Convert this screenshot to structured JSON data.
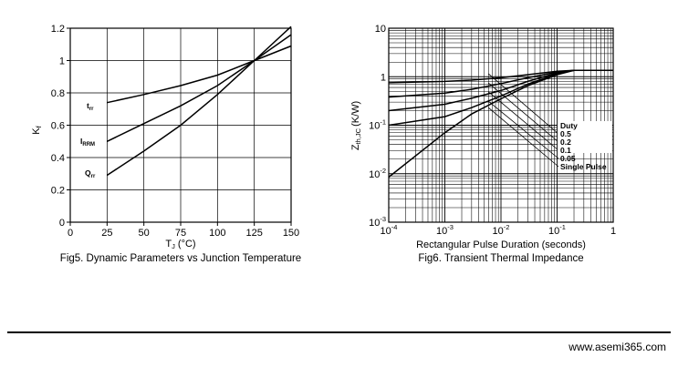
{
  "chart_data": [
    {
      "type": "line",
      "caption": "Fig5. Dynamic Parameters vs Junction Temperature",
      "ylabel": "K",
      "ylabel_sub": "f",
      "xlabel_main": "T",
      "xlabel_sub": "J",
      "xlabel_unit": "(°C)",
      "xlim": [
        0,
        150
      ],
      "ylim": [
        0,
        1.2
      ],
      "xticks": [
        "0",
        "25",
        "50",
        "75",
        "100",
        "125",
        "150"
      ],
      "yticks": [
        "0",
        "0.2",
        "0.4",
        "0.6",
        "0.8",
        "1",
        "1.2"
      ],
      "grid": true,
      "series": [
        {
          "name": "t",
          "sub": "rr",
          "x": [
            25,
            50,
            75,
            100,
            125,
            150
          ],
          "y": [
            0.74,
            0.79,
            0.845,
            0.91,
            1.0,
            1.09
          ]
        },
        {
          "name": "I",
          "sub": "RRM",
          "x": [
            25,
            50,
            75,
            100,
            125,
            150
          ],
          "y": [
            0.5,
            0.61,
            0.72,
            0.845,
            1.0,
            1.16
          ]
        },
        {
          "name": "Q",
          "sub": "rr",
          "x": [
            25,
            50,
            75,
            100,
            125,
            150
          ],
          "y": [
            0.29,
            0.44,
            0.6,
            0.79,
            1.0,
            1.21
          ]
        }
      ]
    },
    {
      "type": "line",
      "caption": "Fig6. Transient Thermal Impedance",
      "xlabel": "Rectangular Pulse Duration (seconds)",
      "ylabel_main": "Z",
      "ylabel_sub": "th,JC",
      "ylabel_unit": "(K/W)",
      "xscale": "log",
      "yscale": "log",
      "xlim": [
        0.0001,
        1
      ],
      "ylim": [
        0.001,
        10
      ],
      "xticks": [
        {
          "base": "10",
          "exp": "-4"
        },
        {
          "base": "10",
          "exp": "-3"
        },
        {
          "base": "10",
          "exp": "-2"
        },
        {
          "base": "10",
          "exp": "-1"
        },
        {
          "base": "1",
          "exp": ""
        }
      ],
      "yticks": [
        {
          "base": "10",
          "exp": "-3"
        },
        {
          "base": "10",
          "exp": "-2"
        },
        {
          "base": "10",
          "exp": "-1"
        },
        {
          "base": "1",
          "exp": ""
        },
        {
          "base": "10",
          "exp": ""
        }
      ],
      "grid": true,
      "legend_title": "Duty",
      "series": [
        {
          "name": "0.5",
          "x": [
            0.0001,
            0.001,
            0.003,
            0.01,
            0.03,
            0.1,
            0.2,
            1
          ],
          "y": [
            0.75,
            0.8,
            0.85,
            0.95,
            1.1,
            1.3,
            1.35,
            1.35
          ]
        },
        {
          "name": "0.2",
          "x": [
            0.0001,
            0.001,
            0.003,
            0.01,
            0.03,
            0.1,
            0.2,
            1
          ],
          "y": [
            0.38,
            0.46,
            0.55,
            0.72,
            0.95,
            1.25,
            1.35,
            1.35
          ]
        },
        {
          "name": "0.1",
          "x": [
            0.0001,
            0.001,
            0.003,
            0.01,
            0.03,
            0.1,
            0.2,
            1
          ],
          "y": [
            0.2,
            0.27,
            0.36,
            0.52,
            0.8,
            1.2,
            1.35,
            1.35
          ]
        },
        {
          "name": "0.05",
          "x": [
            0.0001,
            0.001,
            0.003,
            0.01,
            0.03,
            0.1,
            0.2,
            1
          ],
          "y": [
            0.1,
            0.15,
            0.23,
            0.4,
            0.7,
            1.15,
            1.35,
            1.35
          ]
        },
        {
          "name": "Single Pulse",
          "x": [
            0.0001,
            0.001,
            0.003,
            0.01,
            0.03,
            0.1,
            0.2,
            1
          ],
          "y": [
            0.0085,
            0.07,
            0.17,
            0.35,
            0.65,
            1.1,
            1.35,
            1.35
          ]
        }
      ]
    }
  ],
  "footer": {
    "url": "www.asemi365.com"
  }
}
